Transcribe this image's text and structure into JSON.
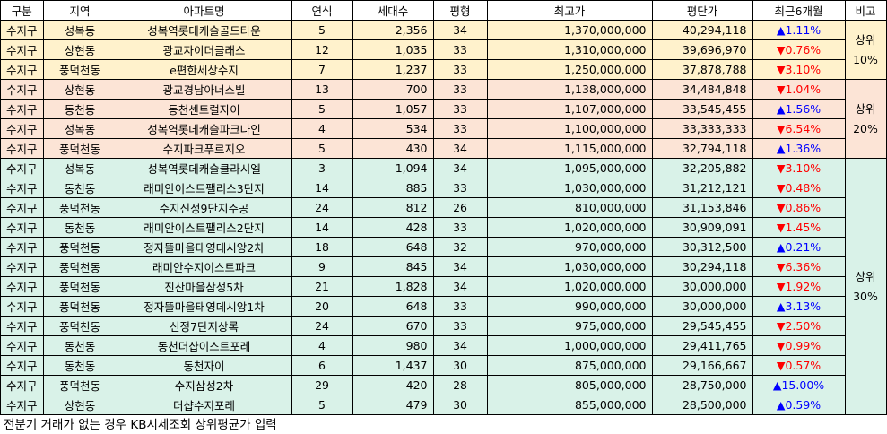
{
  "headers": [
    "구분",
    "지역",
    "아파트명",
    "연식",
    "세대수",
    "평형",
    "최고가",
    "평단가",
    "최근6개월",
    "비고"
  ],
  "groups": [
    {
      "label": "상위\n10%",
      "class": "g1",
      "rows": [
        [
          "수지구",
          "성복동",
          "성복역롯데캐슬골드타운",
          "5",
          "2,356",
          "34",
          "1,370,000,000",
          "40,294,118",
          "up",
          "1.11%"
        ],
        [
          "수지구",
          "상현동",
          "광교자이더클래스",
          "12",
          "1,035",
          "33",
          "1,310,000,000",
          "39,696,970",
          "down",
          "0.76%"
        ],
        [
          "수지구",
          "풍덕천동",
          "e편한세상수지",
          "7",
          "1,237",
          "33",
          "1,250,000,000",
          "37,878,788",
          "down",
          "3.10%"
        ]
      ]
    },
    {
      "label": "상위\n20%",
      "class": "g2",
      "rows": [
        [
          "수지구",
          "상현동",
          "광교경남아너스빌",
          "13",
          "700",
          "33",
          "1,138,000,000",
          "34,484,848",
          "down",
          "1.04%"
        ],
        [
          "수지구",
          "동천동",
          "동천센트럴자이",
          "5",
          "1,057",
          "33",
          "1,107,000,000",
          "33,545,455",
          "up",
          "1.56%"
        ],
        [
          "수지구",
          "성복동",
          "성복역롯데캐슬파크나인",
          "4",
          "534",
          "33",
          "1,100,000,000",
          "33,333,333",
          "down",
          "6.54%"
        ],
        [
          "수지구",
          "풍덕천동",
          "수지파크푸르지오",
          "5",
          "430",
          "34",
          "1,115,000,000",
          "32,794,118",
          "up",
          "1.36%"
        ]
      ]
    },
    {
      "label": "상위\n30%",
      "class": "g3",
      "rows": [
        [
          "수지구",
          "성복동",
          "성복역롯데캐슬클라시엘",
          "3",
          "1,094",
          "34",
          "1,095,000,000",
          "32,205,882",
          "down",
          "3.10%"
        ],
        [
          "수지구",
          "동천동",
          "래미안이스트팰리스3단지",
          "14",
          "885",
          "33",
          "1,030,000,000",
          "31,212,121",
          "down",
          "0.48%"
        ],
        [
          "수지구",
          "풍덕천동",
          "수지신정9단지주공",
          "24",
          "812",
          "26",
          "810,000,000",
          "31,153,846",
          "down",
          "0.86%"
        ],
        [
          "수지구",
          "동천동",
          "래미안이스트팰리스2단지",
          "14",
          "428",
          "33",
          "1,020,000,000",
          "30,909,091",
          "down",
          "1.45%"
        ],
        [
          "수지구",
          "풍덕천동",
          "정자뜰마을태영데시앙2차",
          "18",
          "648",
          "32",
          "970,000,000",
          "30,312,500",
          "up",
          "0.21%"
        ],
        [
          "수지구",
          "풍덕천동",
          "래미안수지이스트파크",
          "9",
          "845",
          "34",
          "1,030,000,000",
          "30,294,118",
          "down",
          "6.36%"
        ],
        [
          "수지구",
          "풍덕천동",
          "진산마을삼성5차",
          "21",
          "1,828",
          "34",
          "1,020,000,000",
          "30,000,000",
          "down",
          "1.92%"
        ],
        [
          "수지구",
          "풍덕천동",
          "정자뜰마을태영데시앙1차",
          "20",
          "648",
          "33",
          "990,000,000",
          "30,000,000",
          "up",
          "3.13%"
        ],
        [
          "수지구",
          "풍덕천동",
          "신정7단지상록",
          "24",
          "670",
          "33",
          "975,000,000",
          "29,545,455",
          "down",
          "2.50%"
        ],
        [
          "수지구",
          "동천동",
          "동천더샵이스트포레",
          "4",
          "980",
          "34",
          "1,000,000,000",
          "29,411,765",
          "down",
          "0.99%"
        ],
        [
          "수지구",
          "동천동",
          "동천자이",
          "6",
          "1,437",
          "30",
          "875,000,000",
          "29,166,667",
          "down",
          "0.57%"
        ],
        [
          "수지구",
          "풍덕천동",
          "수지삼성2차",
          "29",
          "420",
          "28",
          "805,000,000",
          "28,750,000",
          "up",
          "15.00%"
        ],
        [
          "수지구",
          "상현동",
          "더샵수지포레",
          "5",
          "479",
          "30",
          "855,000,000",
          "28,500,000",
          "up",
          "0.59%"
        ]
      ]
    }
  ],
  "arrows": {
    "up": "▲",
    "down": "▼"
  },
  "footnote": "전분기 거래가 없는 경우 KB시세조회 상위평균가 입력"
}
